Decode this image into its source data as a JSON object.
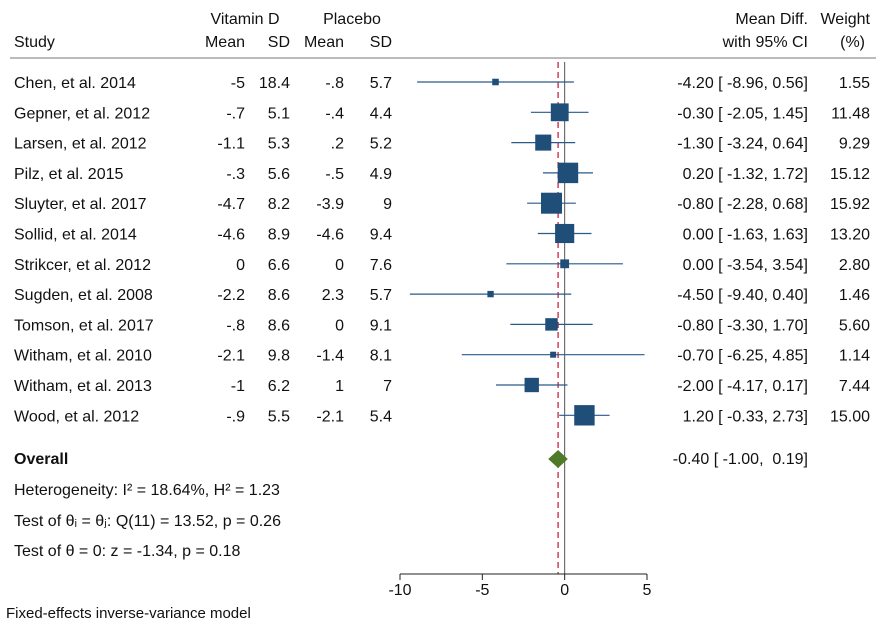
{
  "headers": {
    "group1": "Vitamin D",
    "group2": "Placebo",
    "study": "Study",
    "mean": "Mean",
    "sd": "SD",
    "effect_top": "Mean Diff.",
    "effect_bottom": "with 95% CI",
    "weight_top": "Weight",
    "weight_bottom": "(%)"
  },
  "footer": {
    "overall_label": "Overall",
    "heterogeneity": "Heterogeneity: I² = 18.64%, H² = 1.23",
    "test_homog": "Test of θᵢ = θⱼ: Q(11) = 13.52, p = 0.26",
    "test_zero": "Test of θ = 0: z = -1.34, p = 0.18",
    "model": "Fixed-effects inverse-variance model"
  },
  "colors": {
    "marker": "#1f4e79",
    "ci_line": "#2a5a8a",
    "diamond": "#4f7a28",
    "null_line": "#555555",
    "overall_line": "#c8102e"
  },
  "chart_data": {
    "type": "forest",
    "xlim": [
      -10,
      5
    ],
    "xticks": [
      -10,
      -5,
      0,
      5
    ],
    "null_value": 0,
    "overall_line_value": -0.4,
    "studies": [
      {
        "study": "Chen, et al. 2014",
        "mean1": "-5",
        "sd1": "18.4",
        "mean2": "-.8",
        "sd2": "5.7",
        "md": -4.2,
        "lo": -8.96,
        "hi": 0.56,
        "weight": 1.55,
        "ci_text": "-4.20 [ -8.96,  0.56]",
        "weight_text": "1.55"
      },
      {
        "study": "Gepner, et al. 2012",
        "mean1": "-.7",
        "sd1": "5.1",
        "mean2": "-.4",
        "sd2": "4.4",
        "md": -0.3,
        "lo": -2.05,
        "hi": 1.45,
        "weight": 11.48,
        "ci_text": "-0.30 [ -2.05,  1.45]",
        "weight_text": "11.48"
      },
      {
        "study": "Larsen, et al. 2012",
        "mean1": "-1.1",
        "sd1": "5.3",
        "mean2": ".2",
        "sd2": "5.2",
        "md": -1.3,
        "lo": -3.24,
        "hi": 0.64,
        "weight": 9.29,
        "ci_text": "-1.30 [ -3.24,  0.64]",
        "weight_text": "9.29"
      },
      {
        "study": "Pilz, et al. 2015",
        "mean1": "-.3",
        "sd1": "5.6",
        "mean2": "-.5",
        "sd2": "4.9",
        "md": 0.2,
        "lo": -1.32,
        "hi": 1.72,
        "weight": 15.12,
        "ci_text": "0.20 [ -1.32,  1.72]",
        "weight_text": "15.12"
      },
      {
        "study": "Sluyter, et al. 2017",
        "mean1": "-4.7",
        "sd1": "8.2",
        "mean2": "-3.9",
        "sd2": "9",
        "md": -0.8,
        "lo": -2.28,
        "hi": 0.68,
        "weight": 15.92,
        "ci_text": "-0.80 [ -2.28,  0.68]",
        "weight_text": "15.92"
      },
      {
        "study": "Sollid, et al. 2014",
        "mean1": "-4.6",
        "sd1": "8.9",
        "mean2": "-4.6",
        "sd2": "9.4",
        "md": 0.0,
        "lo": -1.63,
        "hi": 1.63,
        "weight": 13.2,
        "ci_text": "0.00 [ -1.63,  1.63]",
        "weight_text": "13.20"
      },
      {
        "study": "Strikcer, et al. 2012",
        "mean1": "0",
        "sd1": "6.6",
        "mean2": "0",
        "sd2": "7.6",
        "md": 0.0,
        "lo": -3.54,
        "hi": 3.54,
        "weight": 2.8,
        "ci_text": "0.00 [ -3.54,  3.54]",
        "weight_text": "2.80"
      },
      {
        "study": "Sugden, et al. 2008",
        "mean1": "-2.2",
        "sd1": "8.6",
        "mean2": "2.3",
        "sd2": "5.7",
        "md": -4.5,
        "lo": -9.4,
        "hi": 0.4,
        "weight": 1.46,
        "ci_text": "-4.50 [ -9.40,  0.40]",
        "weight_text": "1.46"
      },
      {
        "study": "Tomson, et al. 2017",
        "mean1": "-.8",
        "sd1": "8.6",
        "mean2": "0",
        "sd2": "9.1",
        "md": -0.8,
        "lo": -3.3,
        "hi": 1.7,
        "weight": 5.6,
        "ci_text": "-0.80 [ -3.30,  1.70]",
        "weight_text": "5.60"
      },
      {
        "study": "Witham, et al. 2010",
        "mean1": "-2.1",
        "sd1": "9.8",
        "mean2": "-1.4",
        "sd2": "8.1",
        "md": -0.7,
        "lo": -6.25,
        "hi": 4.85,
        "weight": 1.14,
        "ci_text": "-0.70 [ -6.25,  4.85]",
        "weight_text": "1.14"
      },
      {
        "study": "Witham, et al. 2013",
        "mean1": "-1",
        "sd1": "6.2",
        "mean2": "1",
        "sd2": "7",
        "md": -2.0,
        "lo": -4.17,
        "hi": 0.17,
        "weight": 7.44,
        "ci_text": "-2.00 [ -4.17,  0.17]",
        "weight_text": "7.44"
      },
      {
        "study": "Wood, et al. 2012",
        "mean1": "-.9",
        "sd1": "5.5",
        "mean2": "-2.1",
        "sd2": "5.4",
        "md": 1.2,
        "lo": -0.33,
        "hi": 2.73,
        "weight": 15.0,
        "ci_text": "1.20 [ -0.33,  2.73]",
        "weight_text": "15.00"
      }
    ],
    "overall": {
      "md": -0.4,
      "lo": -1.0,
      "hi": 0.19,
      "ci_text": "-0.40 [ -1.00,  0.19]"
    }
  }
}
